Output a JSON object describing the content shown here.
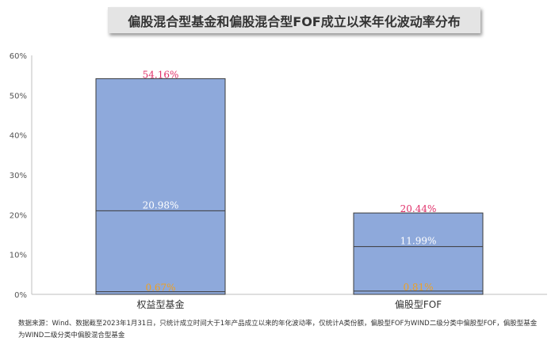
{
  "title": "偏股混合型基金和偏股混合型FOF成立以来年化波动率分布",
  "footnote": "数据来源：Wind、数据截至2023年1月31日，只统计成立时间大于1年产品成立以来的年化波动率，仅统计A类份额，偏股型FOF为WIND二级分类中偏股型FOF，偏股型基金为WIND二级分类中偏股混合型基金",
  "colors": {
    "bar_fill": "#8ea9db",
    "bar_stroke": "#3b3b3b",
    "max_label": "#e0306a",
    "median_label": "#ffffff",
    "min_label": "#f0a020",
    "axis_text": "#555555"
  },
  "chart_data": {
    "type": "bar",
    "categories": [
      "权益型基金",
      "偏股型FOF"
    ],
    "max": [
      54.16,
      20.44
    ],
    "median": [
      20.98,
      11.99
    ],
    "min": [
      0.67,
      0.81
    ],
    "max_labels": [
      "54.16%",
      "20.44%"
    ],
    "median_labels": [
      "20.98%",
      "11.99%"
    ],
    "min_labels": [
      "0.67%",
      "0.81%"
    ],
    "ylim": [
      0,
      60
    ],
    "yticks": [
      "0%",
      "10%",
      "20%",
      "30%",
      "40%",
      "50%",
      "60%"
    ],
    "grid": false
  }
}
